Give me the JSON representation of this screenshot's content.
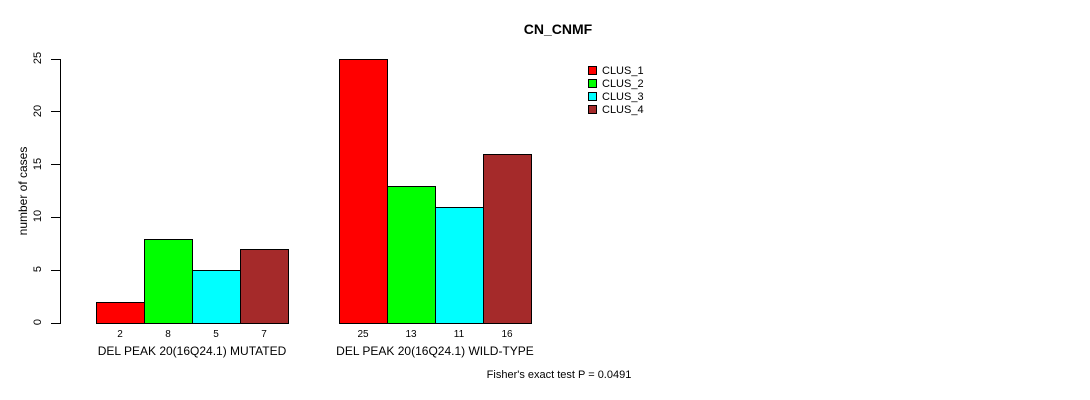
{
  "chart_data": {
    "type": "bar",
    "title": "CN_CNMF",
    "ylabel": "number of cases",
    "xlabel": "",
    "ylim": [
      0,
      25
    ],
    "yticks": [
      0,
      5,
      10,
      15,
      20,
      25
    ],
    "grid": false,
    "legend_position": "top-right",
    "categories": [
      "DEL PEAK 20(16Q24.1) MUTATED",
      "DEL PEAK 20(16Q24.1) WILD-TYPE"
    ],
    "series": [
      {
        "name": "CLUS_1",
        "color": "#FF0000",
        "values": [
          2,
          25
        ]
      },
      {
        "name": "CLUS_2",
        "color": "#00FF00",
        "values": [
          8,
          13
        ]
      },
      {
        "name": "CLUS_3",
        "color": "#00FFFF",
        "values": [
          5,
          11
        ]
      },
      {
        "name": "CLUS_4",
        "color": "#A52A2A",
        "values": [
          7,
          16
        ]
      }
    ],
    "bar_value_labels": [
      [
        "2",
        "8",
        "5",
        "7"
      ],
      [
        "25",
        "13",
        "11",
        "16"
      ]
    ],
    "annotation": "Fisher's exact test P = 0.0491"
  },
  "colors": {
    "background": "#FFFFFF",
    "bar_border": "#000000",
    "text": "#000000"
  }
}
